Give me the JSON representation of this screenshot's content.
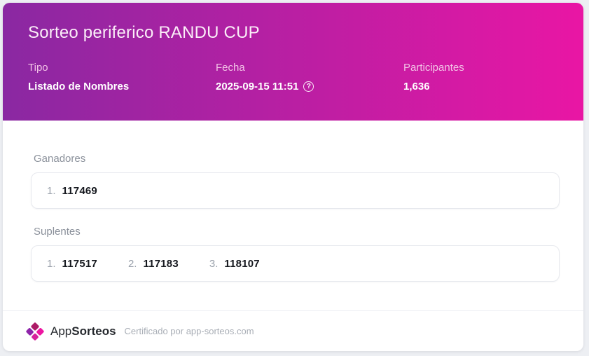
{
  "header": {
    "title": "Sorteo periferico RANDU CUP",
    "gradient_from": "#8a28a2",
    "gradient_to": "#e916a4",
    "meta": [
      {
        "label": "Tipo",
        "value": "Listado de Nombres"
      },
      {
        "label": "Fecha",
        "value": "2025-09-15 11:51"
      },
      {
        "label": "Participantes",
        "value": "1,636"
      }
    ]
  },
  "icons": {
    "help": "?"
  },
  "results": {
    "winners": {
      "label": "Ganadores",
      "items": [
        {
          "index": "1.",
          "value": "117469"
        }
      ]
    },
    "substitutes": {
      "label": "Suplentes",
      "items": [
        {
          "index": "1.",
          "value": "117517"
        },
        {
          "index": "2.",
          "value": "117183"
        },
        {
          "index": "3.",
          "value": "118107"
        }
      ]
    }
  },
  "footer": {
    "brand_prefix": "App",
    "brand_suffix": "Sorteos",
    "certified_text": "Certificado por app-sorteos.com",
    "logo_colors": {
      "top": "#ad1a66",
      "right": "#ed15a1",
      "left": "#8e24aa",
      "bottom": "#d6219c"
    }
  }
}
